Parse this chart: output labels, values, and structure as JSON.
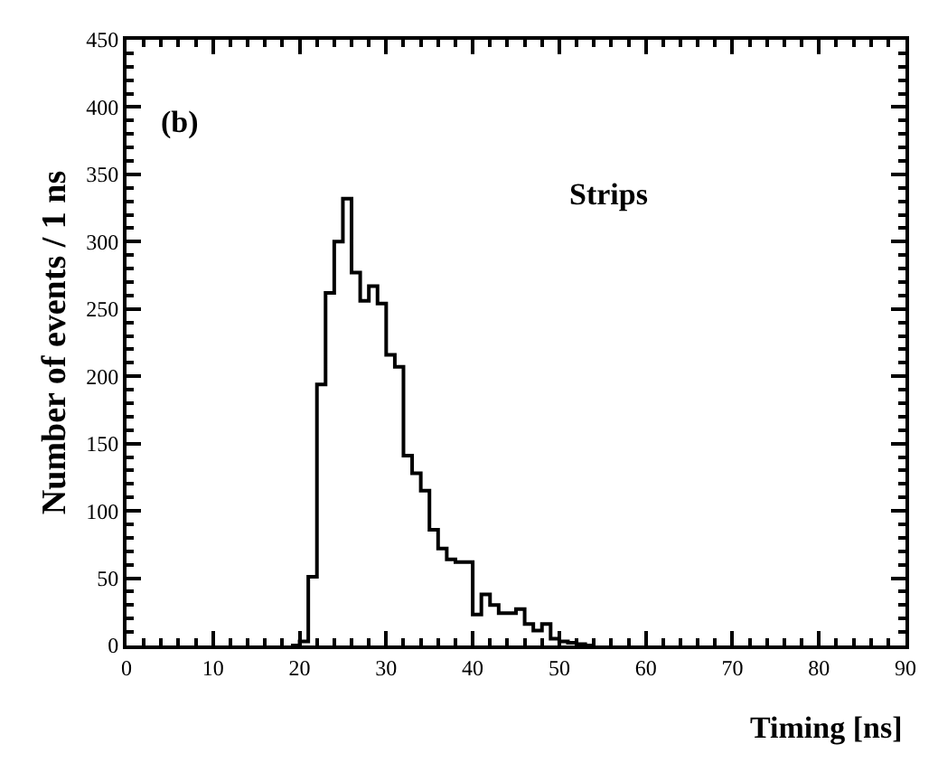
{
  "chart_data": {
    "type": "histogram",
    "xlabel": "Timing [ns]",
    "ylabel": "Number of events / 1 ns",
    "annotations": [
      "(b)",
      "Strips"
    ],
    "bins": [
      19,
      20,
      21,
      22,
      23,
      24,
      25,
      26,
      27,
      28,
      29,
      30,
      31,
      32,
      33,
      34,
      35,
      36,
      37,
      38,
      39,
      40,
      41,
      42,
      43,
      44,
      45,
      46,
      47,
      48,
      49,
      50,
      51,
      52,
      53,
      54
    ],
    "values": [
      0,
      3,
      51,
      194,
      262,
      300,
      332,
      277,
      256,
      267,
      254,
      216,
      207,
      141,
      128,
      115,
      86,
      72,
      64,
      62,
      62,
      23,
      38,
      30,
      24,
      24,
      27,
      16,
      11,
      16,
      5,
      3,
      2,
      1,
      0
    ],
    "color": "#000000",
    "xlim": [
      0,
      90
    ],
    "xticks": [
      0,
      10,
      20,
      30,
      40,
      50,
      60,
      70,
      80,
      90
    ],
    "yticks": [
      0,
      50,
      100,
      150,
      200,
      250,
      300,
      350,
      400,
      450
    ],
    "ylim": [
      0,
      450
    ]
  }
}
